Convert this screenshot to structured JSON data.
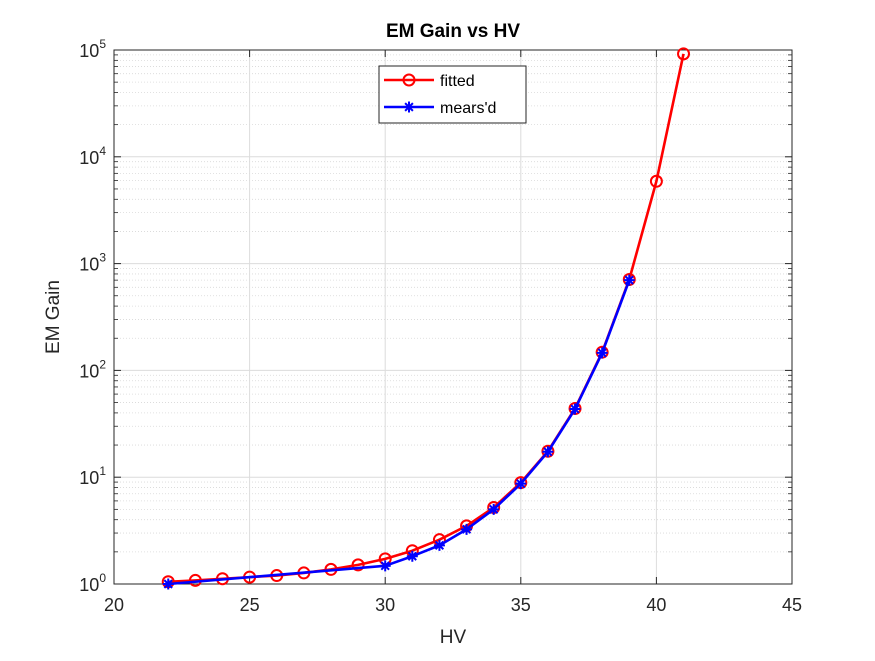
{
  "chart_data": {
    "type": "line",
    "title": "EM Gain vs HV",
    "xlabel": "HV",
    "ylabel": "EM Gain",
    "xlim": [
      20,
      45
    ],
    "ylim": [
      1,
      100000
    ],
    "yscale": "log",
    "grid": true,
    "minor_grid": true,
    "legend_position": "top-center",
    "x_ticks": [
      20,
      25,
      30,
      35,
      40,
      45
    ],
    "x_tick_labels": [
      "20",
      "25",
      "30",
      "35",
      "40",
      "45"
    ],
    "y_ticks": [
      1,
      10,
      100,
      1000,
      10000,
      100000
    ],
    "y_tick_labels": [
      {
        "base": "10",
        "exp": "0"
      },
      {
        "base": "10",
        "exp": "1"
      },
      {
        "base": "10",
        "exp": "2"
      },
      {
        "base": "10",
        "exp": "3"
      },
      {
        "base": "10",
        "exp": "4"
      },
      {
        "base": "10",
        "exp": "5"
      }
    ],
    "series": [
      {
        "name": "fitted",
        "color": "#ff0000",
        "marker": "circle",
        "x": [
          22,
          23,
          24,
          25,
          26,
          27,
          28,
          29,
          30,
          31,
          32,
          33,
          34,
          35,
          36,
          37,
          38,
          39,
          40,
          41
        ],
        "y": [
          1.05,
          1.08,
          1.12,
          1.16,
          1.2,
          1.27,
          1.37,
          1.51,
          1.72,
          2.05,
          2.6,
          3.5,
          5.2,
          8.9,
          17.5,
          44,
          148,
          710,
          5900,
          92000
        ]
      },
      {
        "name": "mears'd",
        "color": "#0000ff",
        "marker": "star",
        "x": [
          22,
          30,
          31,
          32,
          33,
          34,
          35,
          36,
          37,
          38,
          39
        ],
        "y": [
          1.0,
          1.48,
          1.82,
          2.3,
          3.25,
          5.0,
          8.7,
          17.3,
          43.5,
          146,
          700
        ]
      }
    ]
  }
}
